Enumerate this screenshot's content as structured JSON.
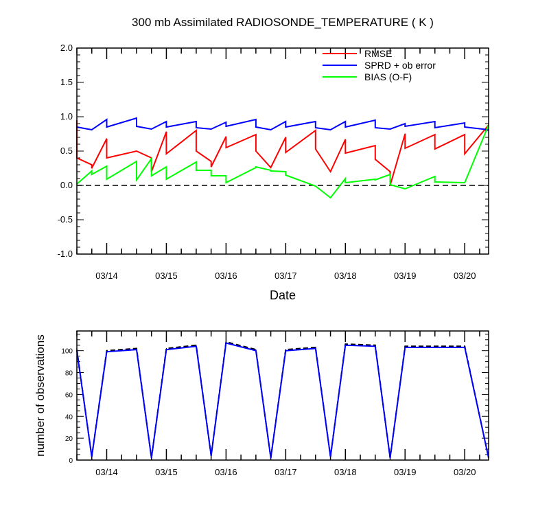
{
  "chart_data": [
    {
      "type": "line",
      "title": "300 mb Assimilated RADIOSONDE_TEMPERATURE ( K )",
      "xlabel": "Date",
      "ylabel": "",
      "xlim": [
        0,
        6.9
      ],
      "ylim": [
        -1.0,
        2.0
      ],
      "x_ticks": [
        {
          "x": 0.5,
          "label": "03/14"
        },
        {
          "x": 1.5,
          "label": "03/15"
        },
        {
          "x": 2.5,
          "label": "03/16"
        },
        {
          "x": 3.5,
          "label": "03/17"
        },
        {
          "x": 4.5,
          "label": "03/18"
        },
        {
          "x": 5.5,
          "label": "03/19"
        },
        {
          "x": 6.5,
          "label": "03/20"
        }
      ],
      "y_ticks": [
        {
          "y": 2.0,
          "label": "2.0"
        },
        {
          "y": 1.5,
          "label": "1.5"
        },
        {
          "y": 1.0,
          "label": "1.0"
        },
        {
          "y": 0.5,
          "label": "0.5"
        },
        {
          "y": 0.0,
          "label": "0.0"
        },
        {
          "y": -0.5,
          "label": "-0.5"
        },
        {
          "y": -1.0,
          "label": "-1.0"
        }
      ],
      "reference_line": 0.0,
      "legend_position": "top-right",
      "series": [
        {
          "name": "RMSE",
          "color": "#ff0000",
          "points": [
            [
              0,
              0.95
            ],
            [
              0,
              0.4
            ],
            [
              0.25,
              0.3
            ],
            [
              0.25,
              0.25
            ],
            [
              0.5,
              0.68
            ],
            [
              0.5,
              0.4
            ],
            [
              1.0,
              0.5
            ],
            [
              1.25,
              0.4
            ],
            [
              1.25,
              0.2
            ],
            [
              1.5,
              0.78
            ],
            [
              1.5,
              0.46
            ],
            [
              2.0,
              0.8
            ],
            [
              2.0,
              0.5
            ],
            [
              2.25,
              0.35
            ],
            [
              2.25,
              0.27
            ],
            [
              2.5,
              0.71
            ],
            [
              2.5,
              0.55
            ],
            [
              3.0,
              0.74
            ],
            [
              3.0,
              0.5
            ],
            [
              3.25,
              0.26
            ],
            [
              3.5,
              0.7
            ],
            [
              3.5,
              0.48
            ],
            [
              4.0,
              0.8
            ],
            [
              4.0,
              0.53
            ],
            [
              4.25,
              0.2
            ],
            [
              4.5,
              0.67
            ],
            [
              4.5,
              0.47
            ],
            [
              5.0,
              0.58
            ],
            [
              5.0,
              0.38
            ],
            [
              5.25,
              0.2
            ],
            [
              5.25,
              0.0
            ],
            [
              5.5,
              0.75
            ],
            [
              5.5,
              0.54
            ],
            [
              6.0,
              0.74
            ],
            [
              6.0,
              0.53
            ],
            [
              6.5,
              0.74
            ],
            [
              6.5,
              0.46
            ],
            [
              6.9,
              0.88
            ]
          ]
        },
        {
          "name": "SPRD + ob error",
          "color": "#0000ff",
          "points": [
            [
              0,
              0.85
            ],
            [
              0.25,
              0.81
            ],
            [
              0.5,
              0.96
            ],
            [
              0.5,
              0.85
            ],
            [
              1.0,
              0.98
            ],
            [
              1.0,
              0.86
            ],
            [
              1.25,
              0.82
            ],
            [
              1.5,
              0.93
            ],
            [
              1.5,
              0.85
            ],
            [
              2.0,
              0.93
            ],
            [
              2.0,
              0.84
            ],
            [
              2.25,
              0.82
            ],
            [
              2.5,
              0.92
            ],
            [
              2.5,
              0.86
            ],
            [
              3.0,
              0.96
            ],
            [
              3.0,
              0.85
            ],
            [
              3.25,
              0.81
            ],
            [
              3.5,
              0.93
            ],
            [
              3.5,
              0.85
            ],
            [
              4.0,
              0.93
            ],
            [
              4.0,
              0.84
            ],
            [
              4.25,
              0.81
            ],
            [
              4.5,
              0.93
            ],
            [
              4.5,
              0.85
            ],
            [
              5.0,
              0.95
            ],
            [
              5.0,
              0.84
            ],
            [
              5.25,
              0.82
            ],
            [
              5.5,
              0.9
            ],
            [
              5.5,
              0.86
            ],
            [
              6.0,
              0.93
            ],
            [
              6.0,
              0.84
            ],
            [
              6.5,
              0.91
            ],
            [
              6.5,
              0.85
            ],
            [
              6.9,
              0.81
            ]
          ]
        },
        {
          "name": "BIAS (O-F)",
          "color": "#00ff00",
          "points": [
            [
              0,
              0.02
            ],
            [
              0.25,
              0.21
            ],
            [
              0.25,
              0.16
            ],
            [
              0.5,
              0.28
            ],
            [
              0.5,
              0.09
            ],
            [
              1.0,
              0.35
            ],
            [
              1.0,
              0.08
            ],
            [
              1.25,
              0.39
            ],
            [
              1.25,
              0.14
            ],
            [
              1.5,
              0.27
            ],
            [
              1.5,
              0.09
            ],
            [
              2.0,
              0.34
            ],
            [
              2.0,
              0.22
            ],
            [
              2.25,
              0.22
            ],
            [
              2.25,
              0.14
            ],
            [
              2.5,
              0.14
            ],
            [
              2.5,
              0.04
            ],
            [
              3.0,
              0.26
            ],
            [
              3.0,
              0.27
            ],
            [
              3.25,
              0.22
            ],
            [
              3.25,
              0.21
            ],
            [
              3.5,
              0.2
            ],
            [
              3.5,
              0.15
            ],
            [
              4.0,
              -0.01
            ],
            [
              4.25,
              -0.18
            ],
            [
              4.5,
              0.1
            ],
            [
              4.5,
              0.04
            ],
            [
              5.0,
              0.09
            ],
            [
              5.0,
              0.08
            ],
            [
              5.25,
              0.16
            ],
            [
              5.25,
              0.01
            ],
            [
              5.5,
              -0.05
            ],
            [
              6.0,
              0.13
            ],
            [
              6.0,
              0.05
            ],
            [
              6.5,
              0.04
            ],
            [
              6.9,
              0.88
            ]
          ]
        }
      ]
    },
    {
      "type": "line",
      "title": "",
      "xlabel": "",
      "ylabel": "number of observations",
      "xlim": [
        0,
        6.9
      ],
      "ylim": [
        0,
        118
      ],
      "x_ticks": [
        {
          "x": 0.5,
          "label": "03/14"
        },
        {
          "x": 1.5,
          "label": "03/15"
        },
        {
          "x": 2.5,
          "label": "03/16"
        },
        {
          "x": 3.5,
          "label": "03/17"
        },
        {
          "x": 4.5,
          "label": "03/18"
        },
        {
          "x": 5.5,
          "label": "03/19"
        },
        {
          "x": 6.5,
          "label": "03/20"
        }
      ],
      "y_ticks": [
        {
          "y": 0,
          "label": "0"
        },
        {
          "y": 20,
          "label": "20"
        },
        {
          "y": 40,
          "label": "40"
        },
        {
          "y": 60,
          "label": "60"
        },
        {
          "y": 80,
          "label": "80"
        },
        {
          "y": 100,
          "label": "100"
        }
      ],
      "series": [
        {
          "name": "",
          "color": "#000000",
          "dashed": true,
          "points": [
            [
              0,
              101
            ],
            [
              0.25,
              3
            ],
            [
              0.5,
              100
            ],
            [
              1.0,
              102
            ],
            [
              1.25,
              2
            ],
            [
              1.5,
              102
            ],
            [
              2.0,
              105
            ],
            [
              2.25,
              4
            ],
            [
              2.5,
              108
            ],
            [
              3.0,
              101
            ],
            [
              3.25,
              2
            ],
            [
              3.5,
              101
            ],
            [
              4.0,
              103
            ],
            [
              4.25,
              3
            ],
            [
              4.5,
              106
            ],
            [
              5.0,
              105
            ],
            [
              5.25,
              2
            ],
            [
              5.5,
              104
            ],
            [
              6.5,
              104
            ],
            [
              6.9,
              2
            ]
          ]
        },
        {
          "name": "",
          "color": "#0000ff",
          "dashed": false,
          "points": [
            [
              0,
              100
            ],
            [
              0.25,
              3
            ],
            [
              0.5,
              99
            ],
            [
              1.0,
              101
            ],
            [
              1.25,
              2
            ],
            [
              1.5,
              101
            ],
            [
              2.0,
              104
            ],
            [
              2.25,
              4
            ],
            [
              2.5,
              107
            ],
            [
              3.0,
              100
            ],
            [
              3.25,
              2
            ],
            [
              3.5,
              100
            ],
            [
              4.0,
              102
            ],
            [
              4.25,
              3
            ],
            [
              4.5,
              105
            ],
            [
              5.0,
              104
            ],
            [
              5.25,
              2
            ],
            [
              5.5,
              103
            ],
            [
              6.5,
              103
            ],
            [
              6.9,
              2
            ]
          ]
        }
      ]
    }
  ]
}
